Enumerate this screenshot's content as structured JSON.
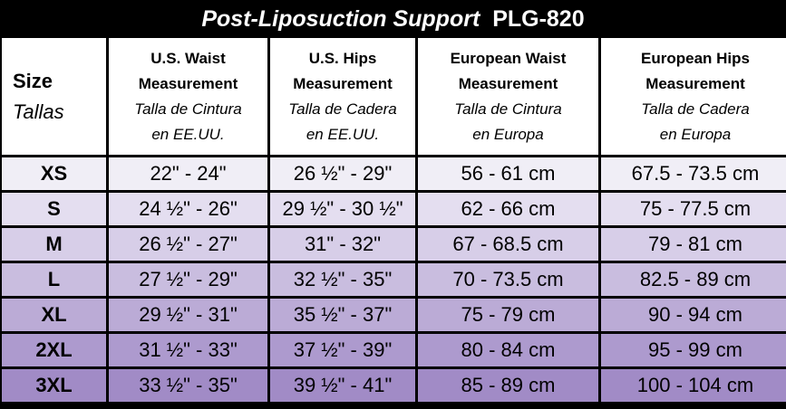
{
  "title": {
    "main": "Post-Liposuction Support",
    "code": "PLG-820"
  },
  "headers": [
    {
      "en": "Size",
      "es": "Tallas"
    },
    {
      "en1": "U.S. Waist",
      "en2": "Measurement",
      "es1": "Talla de Cintura",
      "es2": "en EE.UU."
    },
    {
      "en1": "U.S. Hips",
      "en2": "Measurement",
      "es1": "Talla de Cadera",
      "es2": "en EE.UU."
    },
    {
      "en1": "European Waist",
      "en2": "Measurement",
      "es1": "Talla de Cintura",
      "es2": "en Europa"
    },
    {
      "en1": "European Hips",
      "en2": "Measurement",
      "es1": "Talla de Cadera",
      "es2": "en Europa"
    }
  ],
  "rows": [
    {
      "size": "XS",
      "us_waist": "22\" - 24\"",
      "us_hips": "26 ½\" - 29\"",
      "eu_waist": "56 - 61 cm",
      "eu_hips": "67.5 - 73.5 cm"
    },
    {
      "size": "S",
      "us_waist": "24 ½\" - 26\"",
      "us_hips": "29 ½\" - 30 ½\"",
      "eu_waist": "62 - 66 cm",
      "eu_hips": "75 - 77.5 cm"
    },
    {
      "size": "M",
      "us_waist": "26 ½\" - 27\"",
      "us_hips": "31\" - 32\"",
      "eu_waist": "67 - 68.5 cm",
      "eu_hips": "79 - 81 cm"
    },
    {
      "size": "L",
      "us_waist": "27 ½\" - 29\"",
      "us_hips": "32 ½\" - 35\"",
      "eu_waist": "70 - 73.5 cm",
      "eu_hips": "82.5 - 89 cm"
    },
    {
      "size": "XL",
      "us_waist": "29 ½\" - 31\"",
      "us_hips": "35 ½\" - 37\"",
      "eu_waist": "75 - 79 cm",
      "eu_hips": "90 - 94 cm"
    },
    {
      "size": "2XL",
      "us_waist": "31 ½\" - 33\"",
      "us_hips": "37 ½\" - 39\"",
      "eu_waist": "80 - 84 cm",
      "eu_hips": "95 - 99 cm"
    },
    {
      "size": "3XL",
      "us_waist": "33 ½\" - 35\"",
      "us_hips": "39 ½\" - 41\"",
      "eu_waist": "85 - 89 cm",
      "eu_hips": "100 - 104 cm"
    }
  ],
  "colors": {
    "background": "#000000",
    "header_bg": "#ffffff",
    "row_gradient": [
      "#f0eef6",
      "#e4def0",
      "#d7cee8",
      "#c9bddf",
      "#bbabd6",
      "#ad9ace",
      "#a18bc6"
    ]
  }
}
